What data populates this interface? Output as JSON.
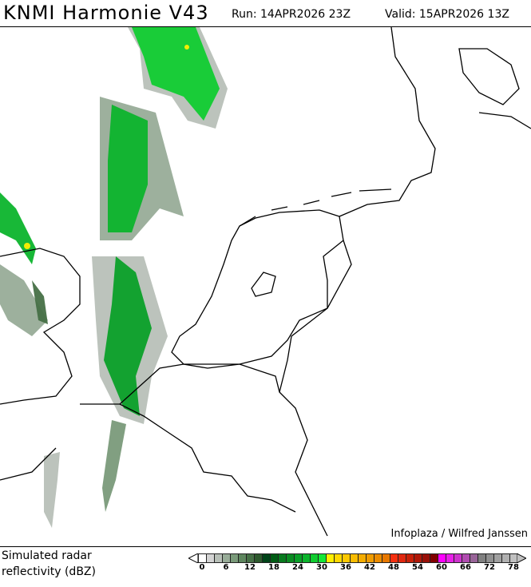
{
  "header": {
    "title": "KNMI Harmonie V43",
    "run": "Run: 14APR2026 23Z",
    "valid": "Valid: 15APR2026 13Z"
  },
  "map": {
    "credit": "Infoplaza / Wilfred Janssen",
    "variable": "Simulated radar reflectivity"
  },
  "legend": {
    "label_line1": "Simulated radar",
    "label_line2": "reflectivity (dBZ)",
    "step": 2,
    "ticks": [
      "0",
      "6",
      "12",
      "18",
      "24",
      "30",
      "36",
      "42",
      "48",
      "54",
      "60",
      "66",
      "72",
      "78"
    ],
    "colors": [
      "#ffffff",
      "#d4d4d4",
      "#b8c0b8",
      "#98ac98",
      "#7a9a7a",
      "#5e865e",
      "#467046",
      "#2e5a2e",
      "#004418",
      "#005c14",
      "#087a1e",
      "#0a8c22",
      "#0aa028",
      "#0cb42c",
      "#10cc30",
      "#14e836",
      "#ffee00",
      "#ffd800",
      "#fcc800",
      "#f8bc00",
      "#f4ac00",
      "#f09c00",
      "#ec8c00",
      "#e87800",
      "#f43010",
      "#e02810",
      "#c82008",
      "#b01808",
      "#981008",
      "#800000",
      "#ff00ff",
      "#e820e8",
      "#cc33cc",
      "#b04cb0",
      "#986498",
      "#808080",
      "#909090",
      "#a0a0a0",
      "#b0b0b0",
      "#c0c0c0"
    ]
  }
}
